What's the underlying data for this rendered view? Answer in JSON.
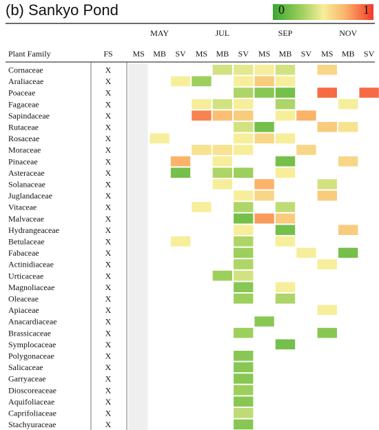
{
  "title": "(b) Sankyo Pond",
  "legend": {
    "min_label": "0",
    "max_label": "1",
    "colors": [
      "#3aa832",
      "#9ccf5c",
      "#f6ee9a",
      "#fbb36a",
      "#f23a2a"
    ]
  },
  "chart_data": {
    "type": "heatmap",
    "title": "(b) Sankyo Pond",
    "row_header": "Plant Family",
    "fs_header": "FS",
    "months": [
      "MAY",
      "JUL",
      "SEP",
      "NOV"
    ],
    "sub_columns": [
      "MS",
      "MB",
      "SV"
    ],
    "color_range": [
      0,
      1
    ],
    "rows": [
      {
        "family": "Cornaceae",
        "fs": "X",
        "values": [
          null,
          null,
          null,
          null,
          0.4,
          0.45,
          0.5,
          0.4,
          null,
          0.6,
          null,
          null
        ]
      },
      {
        "family": "Araliaceae",
        "fs": "X",
        "values": [
          null,
          null,
          0.5,
          0.25,
          null,
          0.5,
          0.65,
          0.5,
          null,
          null,
          null,
          null
        ]
      },
      {
        "family": "Poaceae",
        "fs": "X",
        "values": [
          null,
          null,
          null,
          null,
          null,
          0.3,
          0.2,
          0.15,
          null,
          0.9,
          null,
          0.9
        ]
      },
      {
        "family": "Fagaceae",
        "fs": "X",
        "values": [
          null,
          null,
          null,
          0.5,
          0.4,
          0.5,
          null,
          0.3,
          null,
          null,
          0.5,
          null
        ]
      },
      {
        "family": "Sapindaceae",
        "fs": "X",
        "values": [
          null,
          null,
          null,
          0.85,
          0.7,
          0.65,
          null,
          0.5,
          0.75,
          null,
          null,
          null
        ]
      },
      {
        "family": "Rutaceae",
        "fs": "X",
        "values": [
          null,
          null,
          null,
          null,
          null,
          0.4,
          0.15,
          null,
          null,
          0.65,
          0.55,
          null
        ]
      },
      {
        "family": "Rosaceae",
        "fs": "X",
        "values": [
          null,
          0.5,
          null,
          null,
          null,
          0.5,
          0.6,
          0.5,
          null,
          null,
          null,
          null
        ]
      },
      {
        "family": "Moraceae",
        "fs": "X",
        "values": [
          null,
          null,
          null,
          0.55,
          0.55,
          0.5,
          null,
          null,
          0.6,
          null,
          null,
          null
        ]
      },
      {
        "family": "Pinaceae",
        "fs": "X",
        "values": [
          null,
          null,
          0.75,
          null,
          0.5,
          null,
          null,
          0.15,
          null,
          null,
          0.6,
          null
        ]
      },
      {
        "family": "Asteraceae",
        "fs": "X",
        "values": [
          null,
          null,
          0.15,
          null,
          0.3,
          0.25,
          null,
          0.5,
          null,
          null,
          null,
          null
        ]
      },
      {
        "family": "Solanaceae",
        "fs": "X",
        "values": [
          null,
          null,
          null,
          null,
          0.5,
          null,
          0.75,
          null,
          null,
          0.4,
          null,
          null
        ]
      },
      {
        "family": "Juglandaceae",
        "fs": "X",
        "values": [
          null,
          null,
          null,
          null,
          null,
          0.5,
          0.6,
          null,
          null,
          0.65,
          null,
          null
        ]
      },
      {
        "family": "Vitaceae",
        "fs": "X",
        "values": [
          null,
          null,
          null,
          0.5,
          null,
          0.3,
          null,
          0.35,
          null,
          null,
          null,
          null
        ]
      },
      {
        "family": "Malvaceae",
        "fs": "X",
        "values": [
          null,
          null,
          null,
          null,
          null,
          0.15,
          0.8,
          0.65,
          null,
          null,
          null,
          null
        ]
      },
      {
        "family": "Hydrangeaceae",
        "fs": "X",
        "values": [
          null,
          null,
          null,
          null,
          null,
          0.5,
          null,
          0.15,
          null,
          null,
          0.65,
          null
        ]
      },
      {
        "family": "Betulaceae",
        "fs": "X",
        "values": [
          null,
          null,
          0.5,
          null,
          null,
          0.3,
          null,
          0.5,
          null,
          null,
          null,
          null
        ]
      },
      {
        "family": "Fabaceae",
        "fs": "X",
        "values": [
          null,
          null,
          null,
          null,
          null,
          0.25,
          null,
          null,
          0.5,
          null,
          0.15,
          null
        ]
      },
      {
        "family": "Actinidiaceae",
        "fs": "X",
        "values": [
          null,
          null,
          null,
          null,
          null,
          0.3,
          null,
          null,
          null,
          0.5,
          null,
          null
        ]
      },
      {
        "family": "Urticaceae",
        "fs": "X",
        "values": [
          null,
          null,
          null,
          null,
          0.25,
          0.4,
          null,
          null,
          null,
          null,
          null,
          null
        ]
      },
      {
        "family": "Magnoliaceae",
        "fs": "X",
        "values": [
          null,
          null,
          null,
          null,
          null,
          0.2,
          null,
          0.5,
          null,
          null,
          null,
          null
        ]
      },
      {
        "family": "Oleaceae",
        "fs": "X",
        "values": [
          null,
          null,
          null,
          null,
          null,
          0.25,
          null,
          0.3,
          null,
          null,
          null,
          null
        ]
      },
      {
        "family": "Apiaceae",
        "fs": "X",
        "values": [
          null,
          null,
          null,
          null,
          null,
          null,
          null,
          null,
          null,
          0.5,
          null,
          null
        ]
      },
      {
        "family": "Anacardiaceae",
        "fs": "X",
        "values": [
          null,
          null,
          null,
          null,
          null,
          null,
          0.2,
          null,
          null,
          null,
          null,
          null
        ]
      },
      {
        "family": "Brassicaceae",
        "fs": "X",
        "values": [
          null,
          null,
          null,
          null,
          null,
          0.25,
          null,
          null,
          null,
          0.2,
          null,
          null
        ]
      },
      {
        "family": "Symplocaceae",
        "fs": "X",
        "values": [
          null,
          null,
          null,
          null,
          null,
          null,
          null,
          0.15,
          null,
          null,
          null,
          null
        ]
      },
      {
        "family": "Polygonaceae",
        "fs": "X",
        "values": [
          null,
          null,
          null,
          null,
          null,
          0.2,
          null,
          null,
          null,
          null,
          null,
          null
        ]
      },
      {
        "family": "Salicaceae",
        "fs": "X",
        "values": [
          null,
          null,
          null,
          null,
          null,
          0.2,
          null,
          null,
          null,
          null,
          null,
          null
        ]
      },
      {
        "family": "Garryaceae",
        "fs": "X",
        "values": [
          null,
          null,
          null,
          null,
          null,
          0.2,
          null,
          null,
          null,
          null,
          null,
          null
        ]
      },
      {
        "family": "Dioscoreaceae",
        "fs": "X",
        "values": [
          null,
          null,
          null,
          null,
          null,
          0.25,
          null,
          null,
          null,
          null,
          null,
          null
        ]
      },
      {
        "family": "Aquifoliaceae",
        "fs": "X",
        "values": [
          null,
          null,
          null,
          null,
          null,
          0.2,
          null,
          null,
          null,
          null,
          null,
          null
        ]
      },
      {
        "family": "Caprifoliaceae",
        "fs": "X",
        "values": [
          null,
          null,
          null,
          null,
          null,
          0.35,
          null,
          null,
          null,
          null,
          null,
          null
        ]
      },
      {
        "family": "Stachyuraceae",
        "fs": "X",
        "values": [
          null,
          null,
          null,
          null,
          null,
          0.2,
          null,
          null,
          null,
          null,
          null,
          null
        ]
      }
    ]
  }
}
